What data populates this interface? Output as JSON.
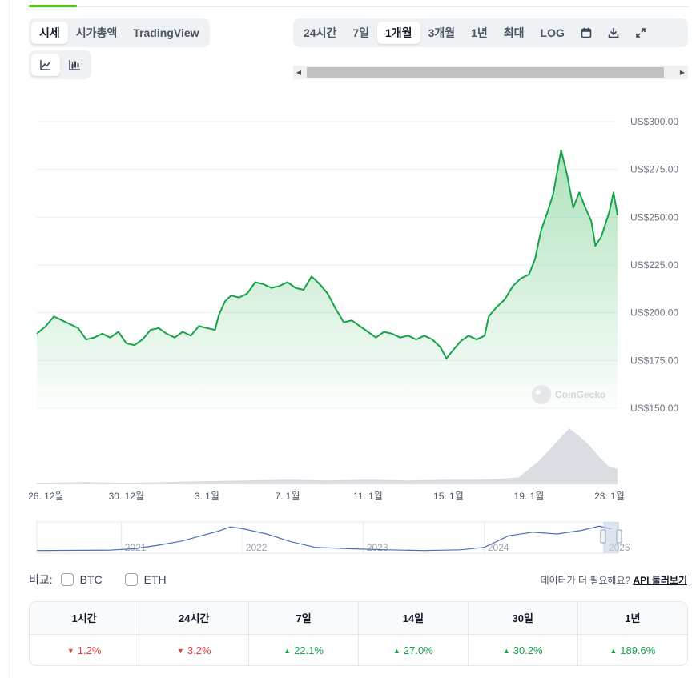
{
  "tabs": {
    "items": [
      "시세",
      "시가총액",
      "TradingView"
    ],
    "active_index": 0
  },
  "timeframes": {
    "items": [
      "24시간",
      "7일",
      "1개월",
      "3개월",
      "1년",
      "최대",
      "LOG"
    ],
    "active_index": 2,
    "icons": [
      "calendar-icon",
      "download-icon",
      "expand-icon"
    ]
  },
  "chart_type_toggle": {
    "icons": [
      "line-chart-icon",
      "candlestick-icon"
    ],
    "active_index": 0
  },
  "chart_data": {
    "type": "line",
    "currency": "US$",
    "ylim": [
      150,
      300
    ],
    "y_ticks": [
      "US$300.00",
      "US$275.00",
      "US$250.00",
      "US$225.00",
      "US$200.00",
      "US$175.00",
      "US$150.00"
    ],
    "x_ticks": [
      "26. 12월",
      "30. 12월",
      "3. 1월",
      "7. 1월",
      "11. 1월",
      "15. 1월",
      "19. 1월",
      "23. 1월"
    ],
    "x_days": [
      0,
      4,
      8,
      12,
      16,
      20,
      24,
      28
    ],
    "x_range_days": [
      -0.45,
      28.4
    ],
    "series": [
      {
        "points": [
          [
            -0.45,
            189
          ],
          [
            0,
            193
          ],
          [
            0.4,
            198
          ],
          [
            0.8,
            196
          ],
          [
            1.2,
            194
          ],
          [
            1.6,
            192
          ],
          [
            2,
            186
          ],
          [
            2.4,
            187
          ],
          [
            2.8,
            189
          ],
          [
            3.2,
            187
          ],
          [
            3.6,
            190
          ],
          [
            4,
            184
          ],
          [
            4.4,
            183
          ],
          [
            4.8,
            186
          ],
          [
            5.2,
            191
          ],
          [
            5.6,
            192
          ],
          [
            6,
            189
          ],
          [
            6.4,
            187
          ],
          [
            6.8,
            190
          ],
          [
            7.2,
            188
          ],
          [
            7.6,
            193
          ],
          [
            8,
            192
          ],
          [
            8.4,
            191
          ],
          [
            8.6,
            199
          ],
          [
            8.9,
            206
          ],
          [
            9.2,
            209
          ],
          [
            9.6,
            208
          ],
          [
            10,
            210
          ],
          [
            10.4,
            216
          ],
          [
            10.8,
            215
          ],
          [
            11.2,
            213
          ],
          [
            11.6,
            214
          ],
          [
            12,
            216
          ],
          [
            12.4,
            213
          ],
          [
            12.8,
            212
          ],
          [
            13.2,
            219
          ],
          [
            13.6,
            215
          ],
          [
            14,
            210
          ],
          [
            14.4,
            202
          ],
          [
            14.8,
            195
          ],
          [
            15.2,
            196
          ],
          [
            15.6,
            193
          ],
          [
            16,
            190
          ],
          [
            16.4,
            187
          ],
          [
            16.8,
            190
          ],
          [
            17.2,
            189
          ],
          [
            17.6,
            187
          ],
          [
            18,
            188
          ],
          [
            18.4,
            186
          ],
          [
            18.8,
            188
          ],
          [
            19.2,
            186
          ],
          [
            19.6,
            182
          ],
          [
            19.9,
            176
          ],
          [
            20.2,
            180
          ],
          [
            20.6,
            185
          ],
          [
            21,
            188
          ],
          [
            21.4,
            186
          ],
          [
            21.8,
            188
          ],
          [
            22,
            198
          ],
          [
            22.4,
            203
          ],
          [
            22.8,
            207
          ],
          [
            23.2,
            214
          ],
          [
            23.6,
            218
          ],
          [
            24,
            220
          ],
          [
            24.3,
            228
          ],
          [
            24.6,
            243
          ],
          [
            24.9,
            252
          ],
          [
            25.2,
            262
          ],
          [
            25.6,
            285
          ],
          [
            25.9,
            272
          ],
          [
            26.2,
            255
          ],
          [
            26.5,
            263
          ],
          [
            26.8,
            255
          ],
          [
            27.1,
            248
          ],
          [
            27.3,
            235
          ],
          [
            27.6,
            240
          ],
          [
            28,
            253
          ],
          [
            28.2,
            263
          ],
          [
            28.4,
            251
          ]
        ]
      }
    ],
    "volume": {
      "note": "relative volume",
      "points": [
        [
          -0.45,
          2
        ],
        [
          2,
          3
        ],
        [
          4,
          2
        ],
        [
          6,
          3
        ],
        [
          8,
          4
        ],
        [
          10,
          5
        ],
        [
          12,
          6
        ],
        [
          14,
          5
        ],
        [
          16,
          6
        ],
        [
          18,
          5
        ],
        [
          20,
          6
        ],
        [
          21.5,
          6
        ],
        [
          22.5,
          7
        ],
        [
          23.5,
          9
        ],
        [
          24.5,
          30
        ],
        [
          25,
          44
        ],
        [
          25.5,
          58
        ],
        [
          26,
          72
        ],
        [
          26.5,
          62
        ],
        [
          27,
          50
        ],
        [
          27.5,
          35
        ],
        [
          28,
          22
        ],
        [
          28.4,
          20
        ]
      ]
    },
    "watermark": "CoinGecko",
    "navigator": {
      "year_labels": [
        "2021",
        "2022",
        "2023",
        "2024",
        "2025"
      ],
      "years_range": [
        2020.3,
        2025.1
      ],
      "points": [
        [
          2020.3,
          3
        ],
        [
          2020.9,
          4
        ],
        [
          2021.1,
          8
        ],
        [
          2021.3,
          18
        ],
        [
          2021.5,
          30
        ],
        [
          2021.65,
          44
        ],
        [
          2021.8,
          58
        ],
        [
          2021.9,
          70
        ],
        [
          2022.0,
          65
        ],
        [
          2022.2,
          50
        ],
        [
          2022.4,
          28
        ],
        [
          2022.6,
          12
        ],
        [
          2022.9,
          8
        ],
        [
          2023.2,
          5
        ],
        [
          2023.5,
          3
        ],
        [
          2023.8,
          5
        ],
        [
          2024.0,
          12
        ],
        [
          2024.2,
          45
        ],
        [
          2024.4,
          55
        ],
        [
          2024.6,
          50
        ],
        [
          2024.8,
          60
        ],
        [
          2024.95,
          72
        ],
        [
          2025.05,
          64
        ]
      ]
    }
  },
  "compare": {
    "label": "비교:",
    "options": [
      "BTC",
      "ETH"
    ]
  },
  "api_note": {
    "text": "데이터가 더 필요해요?",
    "link": "API 둘러보기"
  },
  "performance": {
    "headers": [
      "1시간",
      "24시간",
      "7일",
      "14일",
      "30일",
      "1년"
    ],
    "values": [
      {
        "value": "1.2%",
        "direction": "down"
      },
      {
        "value": "3.2%",
        "direction": "down"
      },
      {
        "value": "22.1%",
        "direction": "up"
      },
      {
        "value": "27.0%",
        "direction": "up"
      },
      {
        "value": "30.2%",
        "direction": "up"
      },
      {
        "value": "189.6%",
        "direction": "up"
      }
    ]
  },
  "colors": {
    "line": "#16a34a",
    "down": "#e53e3e",
    "up": "#16a34a",
    "volume": "#d6d9de",
    "navigator_line": "#4a6fb5"
  }
}
